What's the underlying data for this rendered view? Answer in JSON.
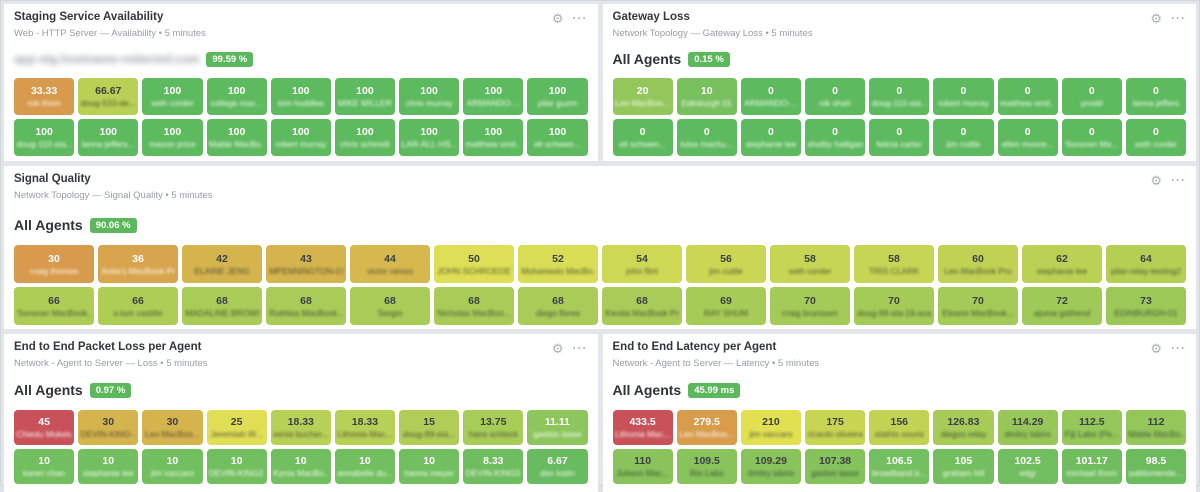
{
  "icons": {
    "settings": "⚙",
    "more": "···"
  },
  "colors": {
    "badge_green": "#5cb85c",
    "panel_bg": "#ffffff",
    "page_bg": "#e4e7ea"
  },
  "panels": {
    "staging": {
      "title": "Staging Service Availability",
      "subtitle": "Web - HTTP Server — Availability • 5 minutes",
      "group_label": "app-stg.hostname-redacted.com",
      "badge": "99.59 %",
      "rows": [
        [
          {
            "value": "33.33",
            "label": "rob thom",
            "bg": "#d89a4c",
            "dark": false
          },
          {
            "value": "66.67",
            "label": "doug-510-de...",
            "bg": "#b8d054",
            "dark": true
          },
          {
            "value": "100",
            "label": "seth corder",
            "bg": "#5eba5e",
            "dark": false
          },
          {
            "value": "100",
            "label": "college mac...",
            "bg": "#5eba5e",
            "dark": false
          },
          {
            "value": "100",
            "label": "tom huddles",
            "bg": "#5eba5e",
            "dark": false
          },
          {
            "value": "100",
            "label": "MIKE MILLER",
            "bg": "#5eba5e",
            "dark": false
          },
          {
            "value": "100",
            "label": "chris murray",
            "bg": "#5eba5e",
            "dark": false
          },
          {
            "value": "100",
            "label": "ARMANDO-...",
            "bg": "#5eba5e",
            "dark": false
          },
          {
            "value": "100",
            "label": "pilar guzm",
            "bg": "#5eba5e",
            "dark": false
          }
        ],
        [
          {
            "value": "100",
            "label": "doug-110-sta...",
            "bg": "#5eba5e",
            "dark": false
          },
          {
            "value": "100",
            "label": "lanna jeffers...",
            "bg": "#5eba5e",
            "dark": false
          },
          {
            "value": "100",
            "label": "mason price",
            "bg": "#5eba5e",
            "dark": false
          },
          {
            "value": "100",
            "label": "Mable MacBo...",
            "bg": "#5eba5e",
            "dark": false
          },
          {
            "value": "100",
            "label": "robert murray",
            "bg": "#5eba5e",
            "dark": false
          },
          {
            "value": "100",
            "label": "chris schmidt",
            "bg": "#5eba5e",
            "dark": false
          },
          {
            "value": "100",
            "label": "LAR-ALL-HS...",
            "bg": "#5eba5e",
            "dark": false
          },
          {
            "value": "100",
            "label": "matthew smit...",
            "bg": "#5eba5e",
            "dark": false
          },
          {
            "value": "100",
            "label": "eli schwen...",
            "bg": "#5eba5e",
            "dark": false
          }
        ]
      ]
    },
    "gateway": {
      "title": "Gateway Loss",
      "subtitle": "Network Topology — Gateway Loss • 5 minutes",
      "group_label": "All Agents",
      "badge": "0.15 %",
      "rows": [
        [
          {
            "value": "20",
            "label": "Leo MacBoo...",
            "bg": "#94c75b",
            "dark": false
          },
          {
            "value": "10",
            "label": "Edinburgh 01",
            "bg": "#77c05d",
            "dark": false
          },
          {
            "value": "0",
            "label": "ARMANDO-...",
            "bg": "#5eba5e",
            "dark": false
          },
          {
            "value": "0",
            "label": "nik shah",
            "bg": "#5eba5e",
            "dark": false
          },
          {
            "value": "0",
            "label": "doug-110-sta...",
            "bg": "#5eba5e",
            "dark": false
          },
          {
            "value": "0",
            "label": "robert murray",
            "bg": "#5eba5e",
            "dark": false
          },
          {
            "value": "0",
            "label": "matthew smit...",
            "bg": "#5eba5e",
            "dark": false
          },
          {
            "value": "0",
            "label": "prodd",
            "bg": "#5eba5e",
            "dark": false
          },
          {
            "value": "0",
            "label": "lanna jeffers",
            "bg": "#5eba5e",
            "dark": false
          }
        ],
        [
          {
            "value": "0",
            "label": "eli schwen...",
            "bg": "#5eba5e",
            "dark": false
          },
          {
            "value": "0",
            "label": "luisa machu...",
            "bg": "#5eba5e",
            "dark": false
          },
          {
            "value": "0",
            "label": "stephanie lee",
            "bg": "#5eba5e",
            "dark": false
          },
          {
            "value": "0",
            "label": "shelby halligan",
            "bg": "#5eba5e",
            "dark": false
          },
          {
            "value": "0",
            "label": "felicia carter",
            "bg": "#5eba5e",
            "dark": false
          },
          {
            "value": "0",
            "label": "jim cuttle",
            "bg": "#5eba5e",
            "dark": false
          },
          {
            "value": "0",
            "label": "ellen moore...",
            "bg": "#5eba5e",
            "dark": false
          },
          {
            "value": "0",
            "label": "Sonoran Ma...",
            "bg": "#5eba5e",
            "dark": false
          },
          {
            "value": "0",
            "label": "seth corder",
            "bg": "#5eba5e",
            "dark": false
          }
        ]
      ]
    },
    "signal": {
      "title": "Signal Quality",
      "subtitle": "Network Topology — Signal Quality • 5 minutes",
      "group_label": "All Agents",
      "badge": "90.06 %",
      "rows": [
        [
          {
            "value": "30",
            "label": "craig thomas",
            "bg": "#d89a4c",
            "dark": false
          },
          {
            "value": "36",
            "label": "Anita's MacBook Pro",
            "bg": "#d8a54e",
            "dark": false
          },
          {
            "value": "42",
            "label": "ELAINE JENG",
            "bg": "#d5b44e",
            "dark": true
          },
          {
            "value": "43",
            "label": "MPENNINGTON-01",
            "bg": "#d5b44e",
            "dark": true
          },
          {
            "value": "44",
            "label": "victor ramos",
            "bg": "#d7b84f",
            "dark": true
          },
          {
            "value": "50",
            "label": "JOHN SCHROEDER",
            "bg": "#dedf56",
            "dark": true
          },
          {
            "value": "52",
            "label": "Mohamedo MacBo...",
            "bg": "#d9dc55",
            "dark": true
          },
          {
            "value": "54",
            "label": "john flint",
            "bg": "#cdd854",
            "dark": true
          },
          {
            "value": "56",
            "label": "jim cuttle",
            "bg": "#cad654",
            "dark": true
          },
          {
            "value": "58",
            "label": "seth corder",
            "bg": "#c6d554",
            "dark": true
          },
          {
            "value": "58",
            "label": "TRIS CLARK",
            "bg": "#c6d554",
            "dark": true
          },
          {
            "value": "60",
            "label": "Leo MacBook Pro",
            "bg": "#c0d254",
            "dark": true
          },
          {
            "value": "62",
            "label": "stephanie lee",
            "bg": "#bbd155",
            "dark": true
          },
          {
            "value": "64",
            "label": "pilar-relay-testing2",
            "bg": "#b5cf55",
            "dark": true
          }
        ],
        [
          {
            "value": "66",
            "label": "Sonoran MacBook...",
            "bg": "#adcd57",
            "dark": true
          },
          {
            "value": "66",
            "label": "s-lum castillo",
            "bg": "#adcd57",
            "dark": true
          },
          {
            "value": "68",
            "label": "MADALINE BROWNE",
            "bg": "#a9cb57",
            "dark": true
          },
          {
            "value": "68",
            "label": "Ruthliss MacBook...",
            "bg": "#a9cb57",
            "dark": true
          },
          {
            "value": "68",
            "label": "Sergio",
            "bg": "#a9cb57",
            "dark": true
          },
          {
            "value": "68",
            "label": "Nicholas MacBoo...",
            "bg": "#a9cb57",
            "dark": true
          },
          {
            "value": "68",
            "label": "diego flores",
            "bg": "#a9cb57",
            "dark": true
          },
          {
            "value": "68",
            "label": "Kerala MacBook Pro",
            "bg": "#a9cb57",
            "dark": true
          },
          {
            "value": "69",
            "label": "RAY SHUM",
            "bg": "#a7cb57",
            "dark": true
          },
          {
            "value": "70",
            "label": "craig brunssen",
            "bg": "#a4ca57",
            "dark": true
          },
          {
            "value": "70",
            "label": "doug-99-sta-19-aus...",
            "bg": "#a4ca57",
            "dark": true
          },
          {
            "value": "70",
            "label": "Eleano MacBook...",
            "bg": "#a4ca57",
            "dark": true
          },
          {
            "value": "72",
            "label": "ajuma gathend",
            "bg": "#9fc958",
            "dark": true
          },
          {
            "value": "73",
            "label": "EDINBURGH-01",
            "bg": "#9cc858",
            "dark": true
          }
        ]
      ]
    },
    "loss": {
      "title": "End to End Packet Loss per Agent",
      "subtitle": "Network - Agent to Server — Loss • 5 minutes",
      "group_label": "All Agents",
      "badge": "0.97 %",
      "rows": [
        [
          {
            "value": "45",
            "label": "Chiedu Mokelu",
            "bg": "#c9525a",
            "dark": false
          },
          {
            "value": "30",
            "label": "DEVIN-KING-...",
            "bg": "#d5b44e",
            "dark": true
          },
          {
            "value": "30",
            "label": "Leo MacBoo...",
            "bg": "#d5b44e",
            "dark": true
          },
          {
            "value": "25",
            "label": "Jeremiah W...",
            "bg": "#e0de55",
            "dark": true
          },
          {
            "value": "18.33",
            "label": "xenia bucher...",
            "bg": "#b7d056",
            "dark": true
          },
          {
            "value": "18.33",
            "label": "Lithonia Mac...",
            "bg": "#b7d056",
            "dark": true
          },
          {
            "value": "15",
            "label": "doug-99-sta...",
            "bg": "#b0ce57",
            "dark": true
          },
          {
            "value": "13.75",
            "label": "hans schlock",
            "bg": "#a8cc58",
            "dark": true
          },
          {
            "value": "11.11",
            "label": "gaston lasse",
            "bg": "#8ec65e",
            "dark": false
          }
        ],
        [
          {
            "value": "10",
            "label": "karen chan",
            "bg": "#72bf5f",
            "dark": false
          },
          {
            "value": "10",
            "label": "stephanie lee",
            "bg": "#72bf5f",
            "dark": false
          },
          {
            "value": "10",
            "label": "jim vaccaro",
            "bg": "#72bf5f",
            "dark": false
          },
          {
            "value": "10",
            "label": "DEVIN-KING2...",
            "bg": "#72bf5f",
            "dark": false
          },
          {
            "value": "10",
            "label": "Kyros MacBo...",
            "bg": "#72bf5f",
            "dark": false
          },
          {
            "value": "10",
            "label": "annabelle du...",
            "bg": "#72bf5f",
            "dark": false
          },
          {
            "value": "10",
            "label": "hanna meyer",
            "bg": "#72bf5f",
            "dark": false
          },
          {
            "value": "8.33",
            "label": "DEVIN-KING3...",
            "bg": "#6ebd5e",
            "dark": false
          },
          {
            "value": "6.67",
            "label": "dan katin",
            "bg": "#68bb5e",
            "dark": false
          }
        ]
      ]
    },
    "latency": {
      "title": "End to End Latency per Agent",
      "subtitle": "Network - Agent to Server — Latency • 5 minutes",
      "group_label": "All Agents",
      "badge": "45.99 ms",
      "rows": [
        [
          {
            "value": "433.5",
            "label": "Lithonia Mac...",
            "bg": "#c9525a",
            "dark": false
          },
          {
            "value": "279.5",
            "label": "Leo MacBoo...",
            "bg": "#d99c4b",
            "dark": false
          },
          {
            "value": "210",
            "label": "jim vaccaro",
            "bg": "#e0e051",
            "dark": true
          },
          {
            "value": "175",
            "label": "ricardo oliveira",
            "bg": "#c8d553",
            "dark": true
          },
          {
            "value": "156",
            "label": "stathis souris",
            "bg": "#c2d354",
            "dark": true
          },
          {
            "value": "126.83",
            "label": "diegos relay",
            "bg": "#a6cb56",
            "dark": true
          },
          {
            "value": "114.29",
            "label": "dmitry labno",
            "bg": "#97c759",
            "dark": true
          },
          {
            "value": "112.5",
            "label": "Fiji Labs (Pe...",
            "bg": "#95c75a",
            "dark": true
          },
          {
            "value": "112",
            "label": "Mable MacBo...",
            "bg": "#94c65a",
            "dark": true
          }
        ],
        [
          {
            "value": "110",
            "label": "Juliano Mac...",
            "bg": "#8ac35b",
            "dark": true
          },
          {
            "value": "109.5",
            "label": "Rio Labs",
            "bg": "#89c35b",
            "dark": true
          },
          {
            "value": "109.29",
            "label": "dmitry labno",
            "bg": "#88c35c",
            "dark": true
          },
          {
            "value": "107.38",
            "label": "gaston lasse",
            "bg": "#85c25c",
            "dark": true
          },
          {
            "value": "106.5",
            "label": "broadband b...",
            "bg": "#74bf5f",
            "dark": false
          },
          {
            "value": "105",
            "label": "graham hill",
            "bg": "#73bf5f",
            "dark": false
          },
          {
            "value": "102.5",
            "label": "edgi",
            "bg": "#70be5f",
            "dark": false
          },
          {
            "value": "101.17",
            "label": "michael thorn",
            "bg": "#6fbd5e",
            "dark": false
          },
          {
            "value": "98.5",
            "label": "pablomende...",
            "bg": "#6cbc5e",
            "dark": false
          }
        ]
      ]
    }
  }
}
